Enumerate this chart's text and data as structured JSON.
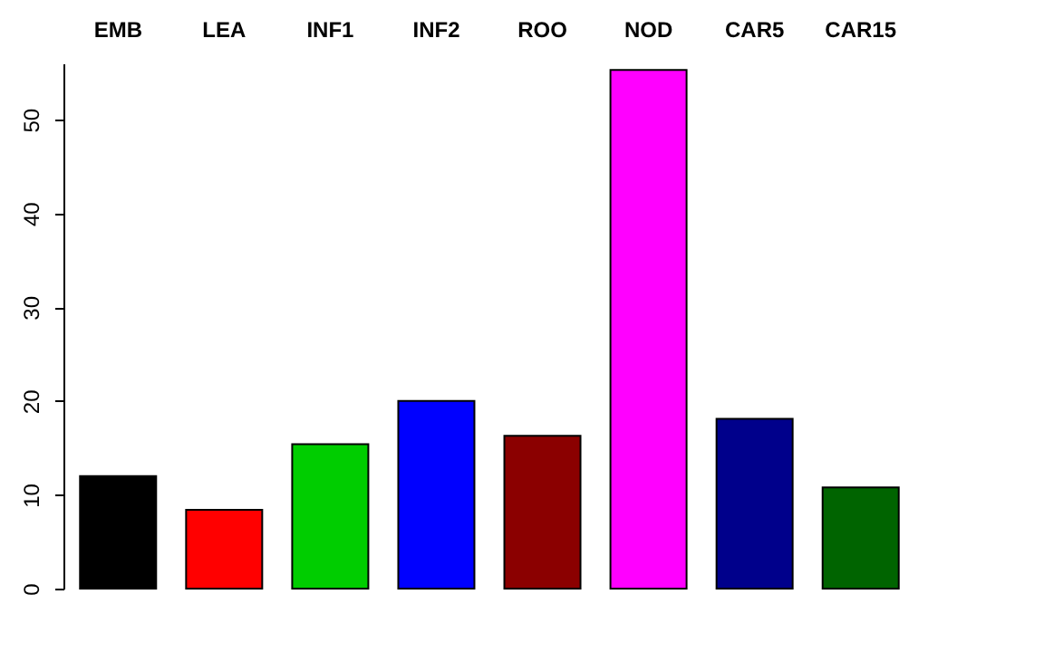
{
  "chart_data": {
    "type": "bar",
    "categories": [
      "EMB",
      "LEA",
      "INF1",
      "INF2",
      "ROO",
      "NOD",
      "CAR5",
      "CAR15"
    ],
    "values": [
      12.0,
      8.4,
      15.4,
      20.0,
      16.3,
      55.3,
      18.1,
      10.8
    ],
    "colors": [
      "#000000",
      "#ff0000",
      "#00cd00",
      "#0000ff",
      "#8b0000",
      "#ff00ff",
      "#00008b",
      "#006400"
    ],
    "ylim": [
      0,
      56
    ],
    "yticks": [
      0,
      10,
      20,
      30,
      40,
      50
    ],
    "grid": false
  }
}
